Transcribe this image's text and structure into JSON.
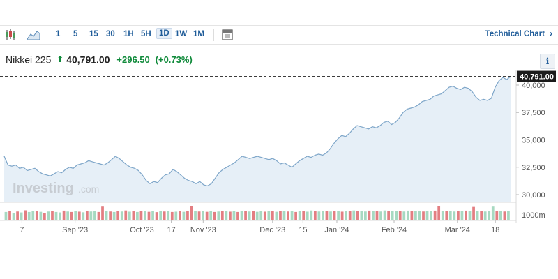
{
  "toolbar": {
    "chart_type_icons": [
      "candlestick-icon",
      "area-chart-icon"
    ],
    "timeframes": [
      "1",
      "5",
      "15",
      "30",
      "1H",
      "5H",
      "1D",
      "1W",
      "1M"
    ],
    "active_timeframe": "1D",
    "settings_icon": "chart-settings-icon",
    "technical_chart_label": "Technical Chart",
    "technical_chart_icon": "chevron-right-icon"
  },
  "quote": {
    "instrument": "Nikkei 225",
    "arrow": "⬆",
    "price": "40,791.00",
    "change": "+296.50",
    "change_pct": "(+0.73%)",
    "info_label": "i"
  },
  "watermark": {
    "brand": "Investing",
    "suffix": ".com"
  },
  "colors": {
    "line": "#7ea6c9",
    "area": "#e6eff7",
    "up_volume": "#a7d9c1",
    "down_volume": "#e37e82",
    "price_tag_bg": "#1b1b1b",
    "positive": "#0f8a3a",
    "link": "#1f5c99"
  },
  "chart_data": {
    "type": "area",
    "y_ticks": [
      "40,000",
      "37,500",
      "35,000",
      "32,500",
      "30,000"
    ],
    "y_tick_values": [
      40000,
      37500,
      35000,
      32500,
      30000
    ],
    "ylim": [
      29300,
      41400
    ],
    "last_price_label": "40,791.00",
    "last_price": 40791,
    "volume_label": "1000m",
    "x_labels": [
      "7",
      "Sep '23",
      "Oct '23",
      "17",
      "Nov '23",
      "Dec '23",
      "15",
      "Jan '24",
      "Feb '24",
      "Mar '24",
      "18"
    ],
    "x_label_positions": [
      0.035,
      0.14,
      0.272,
      0.33,
      0.393,
      0.53,
      0.59,
      0.657,
      0.77,
      0.895,
      0.97
    ],
    "series": [
      {
        "values": [
          33500,
          32700,
          32600,
          32700,
          32400,
          32500,
          32200,
          32300,
          32400,
          32100,
          31900,
          31800,
          31700,
          31900,
          32100,
          32000,
          32300,
          32500,
          32400,
          32700,
          32800,
          32900,
          33100,
          33000,
          32900,
          32800,
          32700,
          32900,
          33200,
          33500,
          33300,
          33000,
          32700,
          32500,
          32400,
          32200,
          31800,
          31300,
          31000,
          31200,
          31100,
          31500,
          31800,
          31900,
          32300,
          32100,
          31800,
          31500,
          31300,
          31200,
          31000,
          31200,
          30900,
          30800,
          31000,
          31500,
          32000,
          32300,
          32500,
          32700,
          32900,
          33200,
          33500,
          33400,
          33300,
          33400,
          33500,
          33400,
          33300,
          33200,
          33300,
          33100,
          32800,
          32900,
          32700,
          32500,
          32800,
          33100,
          33300,
          33500,
          33400,
          33600,
          33700,
          33600,
          33800,
          34200,
          34700,
          35100,
          35400,
          35300,
          35600,
          36000,
          36300,
          36200,
          36100,
          36000,
          36200,
          36100,
          36300,
          36600,
          36700,
          36400,
          36600,
          37000,
          37500,
          37800,
          37900,
          38000,
          38200,
          38500,
          38600,
          38700,
          39000,
          39100,
          39200,
          39500,
          39800,
          39900,
          39700,
          39600,
          39800,
          39700,
          39400,
          38900,
          38600,
          38700,
          38600,
          38800,
          39800,
          40400,
          40700,
          40500,
          40791
        ]
      }
    ],
    "volume": [
      {
        "v": 0.55,
        "up": true
      },
      {
        "v": 0.6,
        "up": false
      },
      {
        "v": 0.5,
        "up": true
      },
      {
        "v": 0.58,
        "up": false
      },
      {
        "v": 0.52,
        "up": true
      },
      {
        "v": 0.66,
        "up": false
      },
      {
        "v": 0.55,
        "up": true
      },
      {
        "v": 0.6,
        "up": true
      },
      {
        "v": 0.62,
        "up": false
      },
      {
        "v": 0.56,
        "up": true
      },
      {
        "v": 0.5,
        "up": false
      },
      {
        "v": 0.58,
        "up": true
      },
      {
        "v": 0.6,
        "up": false
      },
      {
        "v": 0.55,
        "up": true
      },
      {
        "v": 0.52,
        "up": true
      },
      {
        "v": 0.64,
        "up": false
      },
      {
        "v": 0.58,
        "up": true
      },
      {
        "v": 0.55,
        "up": false
      },
      {
        "v": 0.6,
        "up": true
      },
      {
        "v": 0.57,
        "up": false
      },
      {
        "v": 0.53,
        "up": true
      },
      {
        "v": 0.62,
        "up": false
      },
      {
        "v": 0.58,
        "up": true
      },
      {
        "v": 0.6,
        "up": true
      },
      {
        "v": 0.55,
        "up": false
      },
      {
        "v": 0.9,
        "up": false
      },
      {
        "v": 0.6,
        "up": true
      },
      {
        "v": 0.58,
        "up": false
      },
      {
        "v": 0.55,
        "up": true
      },
      {
        "v": 0.62,
        "up": false
      },
      {
        "v": 0.58,
        "up": true
      },
      {
        "v": 0.65,
        "up": false
      },
      {
        "v": 0.57,
        "up": true
      },
      {
        "v": 0.6,
        "up": false
      },
      {
        "v": 0.55,
        "up": true
      },
      {
        "v": 0.63,
        "up": false
      },
      {
        "v": 0.59,
        "up": true
      },
      {
        "v": 0.56,
        "up": false
      },
      {
        "v": 0.6,
        "up": true
      },
      {
        "v": 0.54,
        "up": false
      },
      {
        "v": 0.62,
        "up": true
      },
      {
        "v": 0.58,
        "up": false
      },
      {
        "v": 0.6,
        "up": true
      },
      {
        "v": 0.55,
        "up": false
      },
      {
        "v": 0.57,
        "up": true
      },
      {
        "v": 0.6,
        "up": false
      },
      {
        "v": 0.56,
        "up": true
      },
      {
        "v": 0.62,
        "up": false
      },
      {
        "v": 0.95,
        "up": false
      },
      {
        "v": 0.6,
        "up": true
      },
      {
        "v": 0.58,
        "up": false
      },
      {
        "v": 0.62,
        "up": true
      },
      {
        "v": 0.56,
        "up": false
      },
      {
        "v": 0.6,
        "up": true
      },
      {
        "v": 0.55,
        "up": false
      },
      {
        "v": 0.58,
        "up": true
      },
      {
        "v": 0.6,
        "up": false
      },
      {
        "v": 0.62,
        "up": true
      },
      {
        "v": 0.57,
        "up": false
      },
      {
        "v": 0.6,
        "up": true
      },
      {
        "v": 0.55,
        "up": false
      },
      {
        "v": 0.63,
        "up": true
      },
      {
        "v": 0.6,
        "up": false
      },
      {
        "v": 0.58,
        "up": true
      },
      {
        "v": 0.62,
        "up": false
      },
      {
        "v": 0.56,
        "up": true
      },
      {
        "v": 0.6,
        "up": true
      },
      {
        "v": 0.57,
        "up": false
      },
      {
        "v": 0.63,
        "up": true
      },
      {
        "v": 0.59,
        "up": false
      },
      {
        "v": 0.56,
        "up": true
      },
      {
        "v": 0.6,
        "up": false
      },
      {
        "v": 0.62,
        "up": true
      },
      {
        "v": 0.58,
        "up": false
      },
      {
        "v": 0.6,
        "up": true
      },
      {
        "v": 0.55,
        "up": false
      },
      {
        "v": 0.6,
        "up": true
      },
      {
        "v": 0.62,
        "up": false
      },
      {
        "v": 0.57,
        "up": true
      },
      {
        "v": 0.65,
        "up": true
      },
      {
        "v": 0.6,
        "up": false
      },
      {
        "v": 0.58,
        "up": true
      },
      {
        "v": 0.62,
        "up": true
      },
      {
        "v": 0.6,
        "up": false
      },
      {
        "v": 0.58,
        "up": true
      },
      {
        "v": 0.63,
        "up": false
      },
      {
        "v": 0.6,
        "up": true
      },
      {
        "v": 0.57,
        "up": false
      },
      {
        "v": 0.62,
        "up": true
      },
      {
        "v": 0.59,
        "up": false
      },
      {
        "v": 0.65,
        "up": true
      },
      {
        "v": 0.6,
        "up": false
      },
      {
        "v": 0.62,
        "up": true
      },
      {
        "v": 0.58,
        "up": true
      },
      {
        "v": 0.64,
        "up": false
      },
      {
        "v": 0.6,
        "up": true
      },
      {
        "v": 0.62,
        "up": false
      },
      {
        "v": 0.58,
        "up": true
      },
      {
        "v": 0.65,
        "up": true
      },
      {
        "v": 0.6,
        "up": false
      },
      {
        "v": 0.63,
        "up": true
      },
      {
        "v": 0.6,
        "up": true
      },
      {
        "v": 0.62,
        "up": false
      },
      {
        "v": 0.58,
        "up": true
      },
      {
        "v": 0.64,
        "up": true
      },
      {
        "v": 0.62,
        "up": false
      },
      {
        "v": 0.6,
        "up": true
      },
      {
        "v": 0.63,
        "up": true
      },
      {
        "v": 0.58,
        "up": false
      },
      {
        "v": 0.62,
        "up": true
      },
      {
        "v": 0.6,
        "up": true
      },
      {
        "v": 0.64,
        "up": false
      },
      {
        "v": 0.92,
        "up": false
      },
      {
        "v": 0.62,
        "up": true
      },
      {
        "v": 0.6,
        "up": false
      },
      {
        "v": 0.63,
        "up": true
      },
      {
        "v": 0.58,
        "up": true
      },
      {
        "v": 0.62,
        "up": false
      },
      {
        "v": 0.6,
        "up": true
      },
      {
        "v": 0.64,
        "up": false
      },
      {
        "v": 0.62,
        "up": true
      },
      {
        "v": 0.88,
        "up": false
      },
      {
        "v": 0.6,
        "up": true
      },
      {
        "v": 0.62,
        "up": false
      },
      {
        "v": 0.58,
        "up": true
      },
      {
        "v": 0.6,
        "up": true
      },
      {
        "v": 0.9,
        "up": true
      },
      {
        "v": 0.6,
        "up": false
      },
      {
        "v": 0.62,
        "up": true
      },
      {
        "v": 0.58,
        "up": false
      },
      {
        "v": 0.6,
        "up": true
      }
    ]
  }
}
